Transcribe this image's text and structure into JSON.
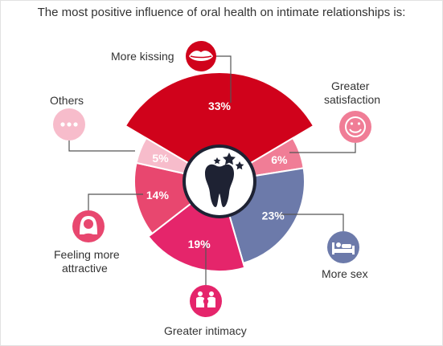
{
  "title": "The most positive influence of oral health on intimate relationships is:",
  "chart_data": {
    "type": "pie",
    "title": "The most positive influence of oral health on intimate relationships is:",
    "categories": [
      "More kissing",
      "Greater satisfaction",
      "More sex",
      "Greater intimacy",
      "Feeling more attractive",
      "Others"
    ],
    "values": [
      33,
      6,
      23,
      19,
      14,
      5
    ],
    "value_labels": [
      "33%",
      "6%",
      "23%",
      "19%",
      "14%",
      "5%"
    ],
    "colors": [
      "#d0021b",
      "#f07d96",
      "#6c7aaa",
      "#e5256b",
      "#e8476f",
      "#f7bccb"
    ],
    "icons": [
      "lips-icon",
      "smiley-icon",
      "bed-icon",
      "couple-heart-icon",
      "woman-icon",
      "ellipsis-icon"
    ],
    "center_icon": "tooth-with-stars-icon"
  },
  "labels": {
    "more_kissing": "More kissing",
    "greater_satisfaction_1": "Greater",
    "greater_satisfaction_2": "satisfaction",
    "more_sex": "More sex",
    "greater_intimacy": "Greater intimacy",
    "feeling_more_attractive_1": "Feeling more",
    "feeling_more_attractive_2": "attractive",
    "others": "Others"
  }
}
